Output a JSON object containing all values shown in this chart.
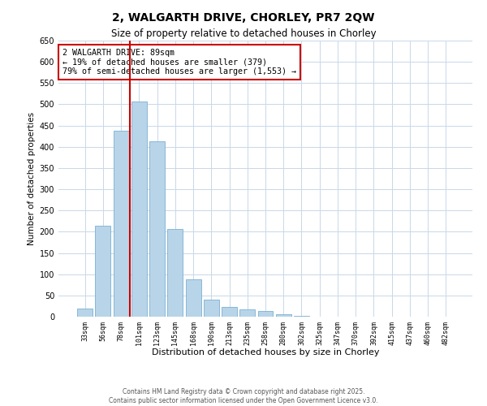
{
  "title": "2, WALGARTH DRIVE, CHORLEY, PR7 2QW",
  "subtitle": "Size of property relative to detached houses in Chorley",
  "xlabel": "Distribution of detached houses by size in Chorley",
  "ylabel": "Number of detached properties",
  "bar_labels": [
    "33sqm",
    "56sqm",
    "78sqm",
    "101sqm",
    "123sqm",
    "145sqm",
    "168sqm",
    "190sqm",
    "213sqm",
    "235sqm",
    "258sqm",
    "280sqm",
    "302sqm",
    "325sqm",
    "347sqm",
    "370sqm",
    "392sqm",
    "415sqm",
    "437sqm",
    "460sqm",
    "482sqm"
  ],
  "bar_values": [
    20,
    215,
    438,
    507,
    413,
    207,
    88,
    40,
    22,
    18,
    13,
    5,
    1,
    0,
    0,
    0,
    0,
    0,
    0,
    0,
    0
  ],
  "bar_color": "#b8d4e8",
  "bar_edge_color": "#7ab0d4",
  "vline_color": "#cc0000",
  "annotation_title": "2 WALGARTH DRIVE: 89sqm",
  "annotation_line1": "← 19% of detached houses are smaller (379)",
  "annotation_line2": "79% of semi-detached houses are larger (1,553) →",
  "annotation_box_color": "#cc0000",
  "ylim": [
    0,
    650
  ],
  "yticks": [
    0,
    50,
    100,
    150,
    200,
    250,
    300,
    350,
    400,
    450,
    500,
    550,
    600,
    650
  ],
  "footer1": "Contains HM Land Registry data © Crown copyright and database right 2025.",
  "footer2": "Contains public sector information licensed under the Open Government Licence v3.0.",
  "bg_color": "#ffffff",
  "grid_color": "#c8d8e8"
}
